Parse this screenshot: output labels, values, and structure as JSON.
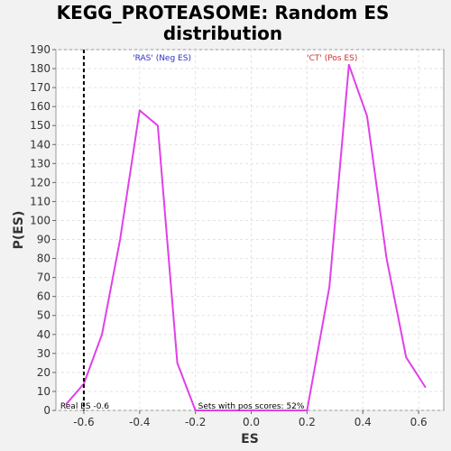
{
  "chart_data": {
    "type": "line",
    "title_lines": [
      "KEGG_PROTEASOME: Random ES",
      "distribution"
    ],
    "xlabel": "ES",
    "ylabel": "P(ES)",
    "xlim": [
      -0.7,
      0.69
    ],
    "ylim": [
      0,
      190
    ],
    "x_ticks": [
      -0.6,
      -0.4,
      -0.2,
      0.0,
      0.2,
      0.4,
      0.6
    ],
    "x_tick_labels": [
      "-0.6",
      "-0.4",
      "-0.2",
      "0.0",
      "0.2",
      "0.4",
      "0.6"
    ],
    "y_ticks": [
      0,
      10,
      20,
      30,
      40,
      50,
      60,
      70,
      80,
      90,
      100,
      110,
      120,
      130,
      140,
      150,
      160,
      170,
      180,
      190
    ],
    "grid": true,
    "series": [
      {
        "color": "#e040e8",
        "x": [
          -0.665,
          -0.6,
          -0.535,
          -0.47,
          -0.4,
          -0.335,
          -0.265,
          -0.2,
          -0.13,
          0.2,
          0.28,
          0.35,
          0.415,
          0.485,
          0.555,
          0.625
        ],
        "y": [
          3,
          14,
          40,
          90,
          158,
          150,
          25,
          0,
          0,
          0,
          65,
          182,
          155,
          80,
          28,
          12
        ]
      }
    ],
    "real_es": {
      "x": -0.6,
      "label": "Real ES -0.6"
    },
    "annotations": {
      "neg": {
        "text": "'RAS' (Neg ES)",
        "color": "#3030c8"
      },
      "pos": {
        "text": "'CT' (Pos ES)",
        "color": "#d03030"
      },
      "sets": {
        "text": "Sets with pos scores: 52%"
      }
    }
  }
}
